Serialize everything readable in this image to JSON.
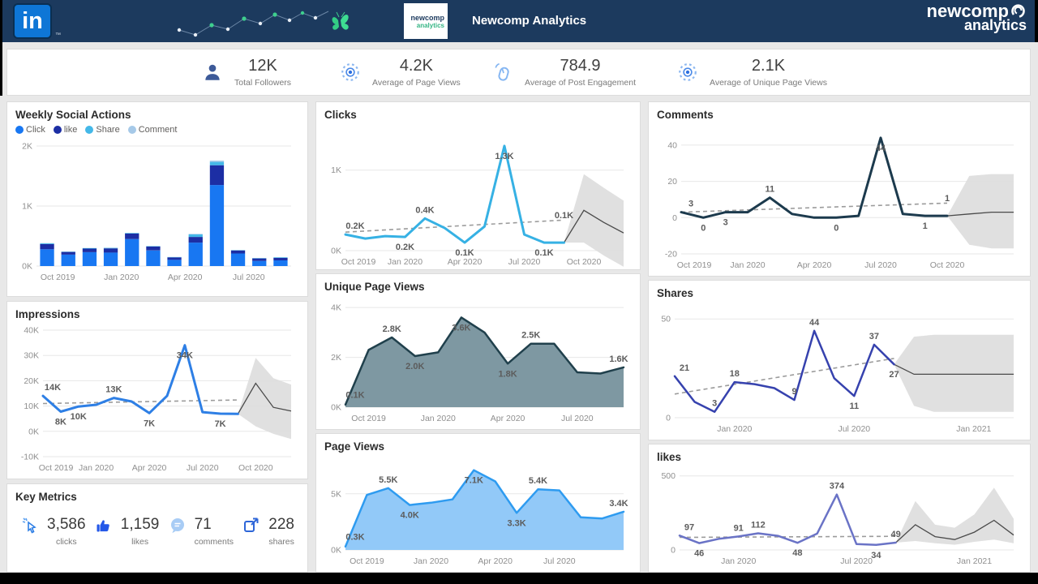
{
  "header": {
    "linkedin": "in",
    "linkedin_tm": "TM",
    "logo_box_line1": "newcomp",
    "logo_box_line2": "analytics",
    "center_title": "Newcomp Analytics",
    "brand_right_line1": "newcomp",
    "brand_right_line2": "analytics"
  },
  "kpis": [
    {
      "icon": "followers-icon",
      "value": "12K",
      "label": "Total Followers"
    },
    {
      "icon": "eye-icon",
      "value": "4.2K",
      "label": "Average of Page Views"
    },
    {
      "icon": "mouse-click-icon",
      "value": "784.9",
      "label": "Average of Post Engagement"
    },
    {
      "icon": "eye-icon",
      "value": "2.1K",
      "label": "Average of Unique Page Views"
    }
  ],
  "key_metrics": {
    "title": "Key Metrics",
    "items": [
      {
        "icon": "cursor-click-icon",
        "value": "3,586",
        "label": "clicks"
      },
      {
        "icon": "thumbs-up-icon",
        "value": "1,159",
        "label": "likes"
      },
      {
        "icon": "comment-bubble-icon",
        "value": "71",
        "label": "comments"
      },
      {
        "icon": "share-icon",
        "value": "228",
        "label": "shares"
      }
    ]
  },
  "chart_data": [
    {
      "id": "weekly_social_actions",
      "type": "bar",
      "stacked": true,
      "title": "Weekly Social Actions",
      "legend": [
        {
          "label": "Click",
          "color": "#1877F2"
        },
        {
          "label": "like",
          "color": "#1C2EA4"
        },
        {
          "label": "Share",
          "color": "#44B8E8"
        },
        {
          "label": "Comment",
          "color": "#A6C9E8"
        }
      ],
      "ylim": [
        0,
        2000
      ],
      "yticks": [
        {
          "v": 0,
          "label": "0K"
        },
        {
          "v": 1000,
          "label": "1K"
        },
        {
          "v": 2000,
          "label": "2K"
        }
      ],
      "xticks": [
        {
          "i": 0.5,
          "label": "Oct 2019"
        },
        {
          "i": 3.5,
          "label": "Jan 2020"
        },
        {
          "i": 6.5,
          "label": "Apr 2020"
        },
        {
          "i": 9.5,
          "label": "Jul 2020"
        }
      ],
      "series": [
        {
          "name": "Click",
          "color": "#1877F2",
          "values": [
            280,
            190,
            230,
            225,
            450,
            260,
            105,
            390,
            1350,
            210,
            85,
            95
          ]
        },
        {
          "name": "like",
          "color": "#1C2EA4",
          "values": [
            85,
            45,
            60,
            70,
            90,
            65,
            40,
            95,
            330,
            50,
            42,
            40
          ]
        },
        {
          "name": "Share",
          "color": "#44B8E8",
          "values": [
            12,
            5,
            8,
            8,
            10,
            6,
            5,
            42,
            55,
            6,
            6,
            9
          ]
        },
        {
          "name": "Comment",
          "color": "#A6C9E8",
          "values": [
            5,
            2,
            3,
            3,
            4,
            3,
            2,
            8,
            22,
            3,
            2,
            3
          ]
        }
      ],
      "padL": 26
    },
    {
      "id": "impressions",
      "type": "line",
      "title": "Impressions",
      "color": "#2E7FE5",
      "lw": 3,
      "ylim": [
        -10000,
        40000
      ],
      "yticks": [
        {
          "v": -10000,
          "label": "-10K"
        },
        {
          "v": 0,
          "label": "0K"
        },
        {
          "v": 10000,
          "label": "10K"
        },
        {
          "v": 20000,
          "label": "20K"
        },
        {
          "v": 30000,
          "label": "30K"
        },
        {
          "v": 40000,
          "label": "40K"
        }
      ],
      "xticks": [
        {
          "i": 0,
          "label": "Oct 2019"
        },
        {
          "i": 3,
          "label": "Jan 2020"
        },
        {
          "i": 6,
          "label": "Apr 2020"
        },
        {
          "i": 9,
          "label": "Jul 2020"
        },
        {
          "i": 12,
          "label": "Oct 2020"
        }
      ],
      "values": [
        14000,
        7800,
        9800,
        10500,
        13200,
        11800,
        7200,
        14000,
        34000,
        7600,
        7000,
        6900
      ],
      "trend": [
        11000,
        12400
      ],
      "forecast": {
        "line": [
          19000,
          9500,
          8000
        ],
        "band": [
          [
            2000,
            29000
          ],
          [
            -1000,
            21000
          ],
          [
            -3000,
            18500
          ]
        ]
      },
      "labels": [
        {
          "i": 0,
          "v": 14000,
          "t": "14K",
          "p": "a"
        },
        {
          "i": 1,
          "v": 7800,
          "t": "8K",
          "p": "b"
        },
        {
          "i": 2,
          "v": 9800,
          "t": "10K",
          "p": "b"
        },
        {
          "i": 4,
          "v": 13200,
          "t": "13K",
          "p": "a"
        },
        {
          "i": 6,
          "v": 7200,
          "t": "7K",
          "p": "b"
        },
        {
          "i": 8,
          "v": 34000,
          "t": "34K",
          "p": "b"
        },
        {
          "i": 10,
          "v": 7000,
          "t": "7K",
          "p": "b"
        }
      ],
      "padL": 34
    },
    {
      "id": "clicks",
      "type": "line",
      "title": "Clicks",
      "color": "#36B1E4",
      "lw": 3,
      "ylim": [
        0,
        1450
      ],
      "yticks": [
        {
          "v": 0,
          "label": "0K"
        },
        {
          "v": 1000,
          "label": "1K"
        }
      ],
      "xticks": [
        {
          "i": 0,
          "label": "Oct 2019"
        },
        {
          "i": 3,
          "label": "Jan 2020"
        },
        {
          "i": 6,
          "label": "Apr 2020"
        },
        {
          "i": 9,
          "label": "Jul 2020"
        },
        {
          "i": 12,
          "label": "Oct 2020"
        }
      ],
      "values": [
        200,
        150,
        180,
        170,
        400,
        280,
        100,
        300,
        1300,
        200,
        100,
        100
      ],
      "trend": [
        230,
        380
      ],
      "forecast": {
        "line": [
          500,
          350,
          220
        ],
        "band": [
          [
            100,
            950
          ],
          [
            -60,
            780
          ],
          [
            -200,
            620
          ]
        ]
      },
      "labels": [
        {
          "i": 0,
          "v": 200,
          "t": "0.2K",
          "p": "a"
        },
        {
          "i": 3,
          "v": 170,
          "t": "0.2K",
          "p": "b"
        },
        {
          "i": 4,
          "v": 400,
          "t": "0.4K",
          "p": "a"
        },
        {
          "i": 6,
          "v": 100,
          "t": "0.1K",
          "p": "b"
        },
        {
          "i": 8,
          "v": 1300,
          "t": "1.3K",
          "p": "b"
        },
        {
          "i": 10,
          "v": 100,
          "t": "0.1K",
          "p": "b"
        },
        {
          "i": 11,
          "v": 330,
          "t": "0.1K",
          "p": "a"
        }
      ],
      "padL": 26
    },
    {
      "id": "unique_page_views",
      "type": "area",
      "title": "Unique Page Views",
      "color": "#20404C",
      "fill": "#7E98A2",
      "lw": 2.5,
      "ylim": [
        0,
        4200
      ],
      "yticks": [
        {
          "v": 0,
          "label": "0K"
        },
        {
          "v": 2000,
          "label": "2K"
        },
        {
          "v": 4000,
          "label": "4K"
        }
      ],
      "xticks": [
        {
          "i": 1,
          "label": "Oct 2019"
        },
        {
          "i": 4,
          "label": "Jan 2020"
        },
        {
          "i": 7,
          "label": "Apr 2020"
        },
        {
          "i": 10,
          "label": "Jul 2020"
        }
      ],
      "values": [
        100,
        2300,
        2800,
        2050,
        2200,
        3600,
        3000,
        1750,
        2550,
        2550,
        1400,
        1350,
        1600
      ],
      "labels": [
        {
          "i": 0,
          "v": 150,
          "t": "0.1K",
          "p": "a"
        },
        {
          "i": 2,
          "v": 2800,
          "t": "2.8K",
          "p": "a"
        },
        {
          "i": 3,
          "v": 2050,
          "t": "2.0K",
          "p": "b"
        },
        {
          "i": 5,
          "v": 3600,
          "t": "3.6K",
          "p": "b"
        },
        {
          "i": 7,
          "v": 1750,
          "t": "1.8K",
          "p": "b"
        },
        {
          "i": 8,
          "v": 2550,
          "t": "2.5K",
          "p": "a"
        },
        {
          "i": 12,
          "v": 1600,
          "t": "1.6K",
          "p": "a"
        }
      ],
      "padL": 26
    },
    {
      "id": "page_views",
      "type": "area",
      "title": "Page Views",
      "color": "#2E9BF0",
      "fill": "#92C9F8",
      "lw": 2.5,
      "ylim": [
        0,
        7800
      ],
      "yticks": [
        {
          "v": 0,
          "label": "0K"
        },
        {
          "v": 5000,
          "label": "5K"
        }
      ],
      "xticks": [
        {
          "i": 1,
          "label": "Oct 2019"
        },
        {
          "i": 4,
          "label": "Jan 2020"
        },
        {
          "i": 7,
          "label": "Apr 2020"
        },
        {
          "i": 10,
          "label": "Jul 2020"
        }
      ],
      "values": [
        300,
        4900,
        5500,
        4000,
        4200,
        4500,
        7100,
        6100,
        3300,
        5400,
        5300,
        2900,
        2800,
        3400
      ],
      "labels": [
        {
          "i": 0,
          "v": 400,
          "t": "0.3K",
          "p": "a"
        },
        {
          "i": 2,
          "v": 5500,
          "t": "5.5K",
          "p": "a"
        },
        {
          "i": 3,
          "v": 4000,
          "t": "4.0K",
          "p": "b"
        },
        {
          "i": 6,
          "v": 7100,
          "t": "7.1K",
          "p": "b"
        },
        {
          "i": 8,
          "v": 3300,
          "t": "3.3K",
          "p": "b"
        },
        {
          "i": 9,
          "v": 5400,
          "t": "5.4K",
          "p": "a"
        },
        {
          "i": 13,
          "v": 3400,
          "t": "3.4K",
          "p": "a"
        }
      ],
      "padL": 26
    },
    {
      "id": "comments",
      "type": "line",
      "title": "Comments",
      "color": "#1C3A4D",
      "lw": 3,
      "ylim": [
        -20,
        48
      ],
      "yticks": [
        {
          "v": -20,
          "label": "-20"
        },
        {
          "v": 0,
          "label": "0"
        },
        {
          "v": 20,
          "label": "20"
        },
        {
          "v": 40,
          "label": "40"
        }
      ],
      "xticks": [
        {
          "i": 0,
          "label": "Oct 2019"
        },
        {
          "i": 3,
          "label": "Jan 2020"
        },
        {
          "i": 6,
          "label": "Apr 2020"
        },
        {
          "i": 9,
          "label": "Jul 2020"
        },
        {
          "i": 12,
          "label": "Oct 2020"
        }
      ],
      "values": [
        3,
        0,
        3,
        3,
        11,
        2,
        0,
        0,
        1,
        44,
        2,
        1,
        1
      ],
      "trend": [
        3,
        8
      ],
      "forecast": {
        "line": [
          2,
          3,
          3
        ],
        "band": [
          [
            -15,
            23
          ],
          [
            -17,
            24
          ],
          [
            -17,
            24
          ]
        ]
      },
      "labels": [
        {
          "i": 0,
          "v": 3,
          "t": "3",
          "p": "a"
        },
        {
          "i": 1,
          "v": 0,
          "t": "0",
          "p": "b"
        },
        {
          "i": 2,
          "v": 3,
          "t": "3",
          "p": "b"
        },
        {
          "i": 4,
          "v": 11,
          "t": "11",
          "p": "a"
        },
        {
          "i": 7,
          "v": 0,
          "t": "0",
          "p": "b"
        },
        {
          "i": 9,
          "v": 44,
          "t": "44",
          "p": "b"
        },
        {
          "i": 11,
          "v": 1,
          "t": "1",
          "p": "b"
        },
        {
          "i": 12,
          "v": 6,
          "t": "1",
          "p": "a"
        }
      ],
      "padL": 30
    },
    {
      "id": "shares",
      "type": "line",
      "title": "Shares",
      "color": "#3642AE",
      "lw": 2.5,
      "ylim": [
        0,
        55
      ],
      "yticks": [
        {
          "v": 0,
          "label": "0"
        },
        {
          "v": 50,
          "label": "50"
        }
      ],
      "xticks": [
        {
          "i": 3,
          "label": "Jan 2020"
        },
        {
          "i": 9,
          "label": "Jul 2020"
        },
        {
          "i": 15,
          "label": "Jan 2021"
        }
      ],
      "values": [
        21,
        8,
        3,
        18,
        17,
        15,
        9,
        44,
        20,
        11,
        37,
        27
      ],
      "trend": [
        12,
        30
      ],
      "forecast": {
        "line": [
          22,
          22,
          22,
          22,
          22,
          22
        ],
        "band": [
          [
            6,
            41
          ],
          [
            3,
            42
          ],
          [
            3,
            42
          ],
          [
            3,
            42
          ],
          [
            3,
            42
          ],
          [
            3,
            42
          ]
        ]
      },
      "labels": [
        {
          "i": 0,
          "v": 21,
          "t": "21",
          "p": "a"
        },
        {
          "i": 2,
          "v": 3,
          "t": "3",
          "p": "a"
        },
        {
          "i": 3,
          "v": 18,
          "t": "18",
          "p": "a"
        },
        {
          "i": 6,
          "v": 9,
          "t": "9",
          "p": "a"
        },
        {
          "i": 7,
          "v": 44,
          "t": "44",
          "p": "a"
        },
        {
          "i": 9,
          "v": 11,
          "t": "11",
          "p": "b"
        },
        {
          "i": 10,
          "v": 37,
          "t": "37",
          "p": "a"
        },
        {
          "i": 11,
          "v": 27,
          "t": "27",
          "p": "b"
        }
      ],
      "padL": 22
    },
    {
      "id": "likes",
      "type": "line",
      "title": "likes",
      "color": "#6A73C6",
      "lw": 2.5,
      "ylim": [
        0,
        520
      ],
      "yticks": [
        {
          "v": 0,
          "label": "0"
        },
        {
          "v": 500,
          "label": "500"
        }
      ],
      "xticks": [
        {
          "i": 3,
          "label": "Jan 2020"
        },
        {
          "i": 9,
          "label": "Jul 2020"
        },
        {
          "i": 15,
          "label": "Jan 2021"
        }
      ],
      "values": [
        97,
        46,
        75,
        91,
        112,
        95,
        48,
        110,
        374,
        40,
        34,
        49
      ],
      "trend": [
        85,
        92
      ],
      "forecast": {
        "line": [
          170,
          90,
          70,
          120,
          200,
          100
        ],
        "band": [
          [
            60,
            330
          ],
          [
            45,
            170
          ],
          [
            35,
            150
          ],
          [
            55,
            240
          ],
          [
            70,
            420
          ],
          [
            45,
            210
          ]
        ]
      },
      "labels": [
        {
          "i": 0,
          "v": 97,
          "t": "97",
          "p": "a"
        },
        {
          "i": 1,
          "v": 46,
          "t": "46",
          "p": "b"
        },
        {
          "i": 3,
          "v": 91,
          "t": "91",
          "p": "a"
        },
        {
          "i": 4,
          "v": 112,
          "t": "112",
          "p": "a"
        },
        {
          "i": 6,
          "v": 48,
          "t": "48",
          "p": "b"
        },
        {
          "i": 8,
          "v": 374,
          "t": "374",
          "p": "a"
        },
        {
          "i": 10,
          "v": 34,
          "t": "34",
          "p": "b"
        },
        {
          "i": 11,
          "v": 49,
          "t": "49",
          "p": "a"
        }
      ],
      "padL": 28
    }
  ]
}
